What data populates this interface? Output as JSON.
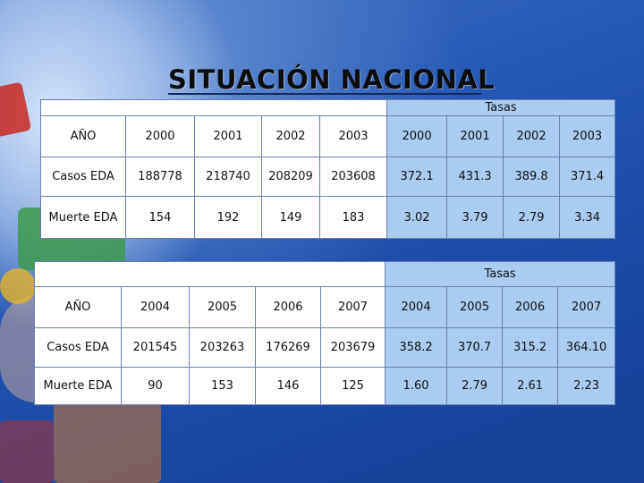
{
  "title": "SITUACIÓN NACIONAL",
  "colors": {
    "background": "#1c4fa8",
    "rate_cells": "#a9ccf0",
    "count_cells": "#ffffff"
  },
  "tables": [
    {
      "group_header": "Tasas",
      "header": {
        "label": "AÑO",
        "years": [
          "2000",
          "2001",
          "2002",
          "2003"
        ],
        "rate_years": [
          "2000",
          "2001",
          "2002",
          "2003"
        ]
      },
      "rows": [
        {
          "label": "Casos EDA",
          "counts": [
            "188778",
            "218740",
            "208209",
            "203608"
          ],
          "rates": [
            "372.1",
            "431.3",
            "389.8",
            "371.4"
          ]
        },
        {
          "label": "Muerte EDA",
          "counts": [
            "154",
            "192",
            "149",
            "183"
          ],
          "rates": [
            "3.02",
            "3.79",
            "2.79",
            "3.34"
          ]
        }
      ]
    },
    {
      "group_header": "Tasas",
      "header": {
        "label": "AÑO",
        "years": [
          "2004",
          "2005",
          "2006",
          "2007"
        ],
        "rate_years": [
          "2004",
          "2005",
          "2006",
          "2007"
        ]
      },
      "rows": [
        {
          "label": "Casos EDA",
          "counts": [
            "201545",
            "203263",
            "176269",
            "203679"
          ],
          "rates": [
            "358.2",
            "370.7",
            "315.2",
            "364.10"
          ]
        },
        {
          "label": "Muerte EDA",
          "counts": [
            "90",
            "153",
            "146",
            "125"
          ],
          "rates": [
            "1.60",
            "2.79",
            "2.61",
            "2.23"
          ]
        }
      ]
    }
  ]
}
